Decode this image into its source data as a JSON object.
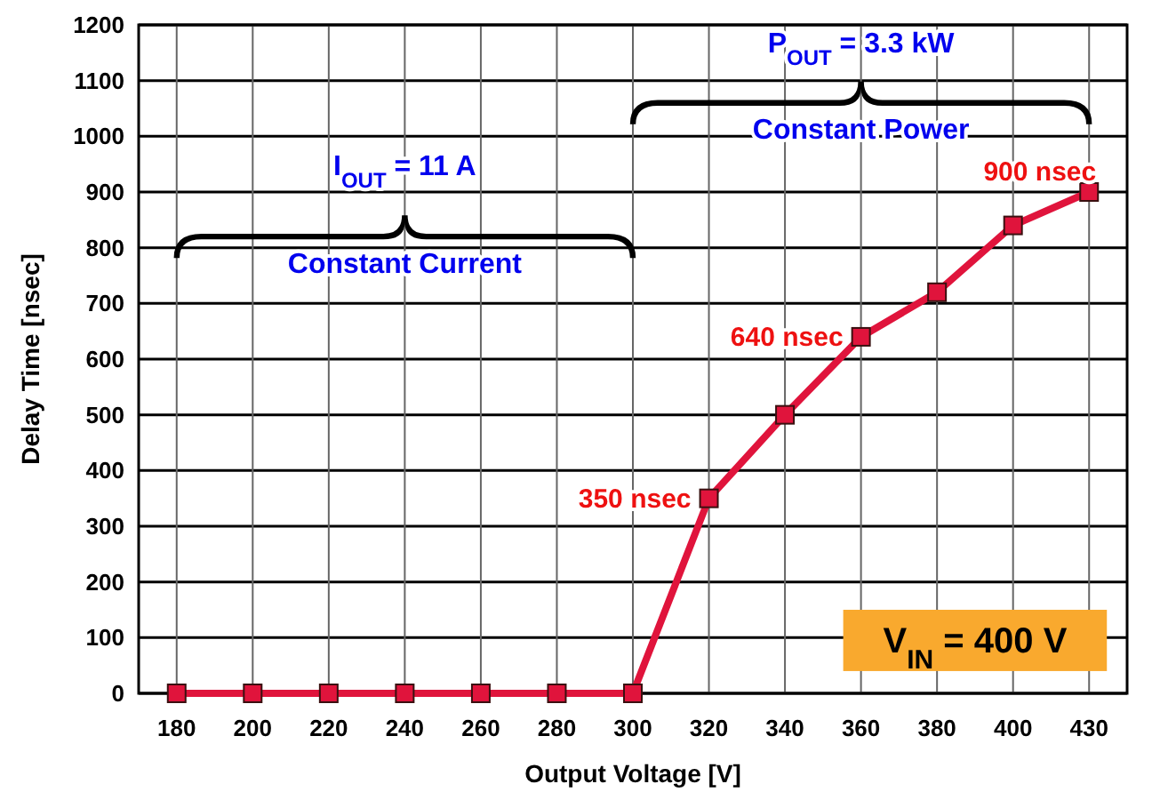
{
  "chart_data": {
    "type": "line",
    "xlabel": "Output Voltage [V]",
    "ylabel": "Delay Time [nsec]",
    "categories": [
      "180",
      "200",
      "220",
      "240",
      "260",
      "280",
      "300",
      "320",
      "340",
      "360",
      "380",
      "400",
      "430"
    ],
    "series": [
      {
        "color": "#e0143c",
        "values": [
          0,
          0,
          0,
          0,
          0,
          0,
          0,
          350,
          500,
          640,
          720,
          840,
          900
        ]
      }
    ],
    "ylim": [
      0,
      1200
    ],
    "yticks": [
      0,
      100,
      200,
      300,
      400,
      500,
      600,
      700,
      800,
      900,
      1000,
      1100,
      1200
    ],
    "grid": true,
    "marker": "square",
    "line_style": "solid",
    "annotations": [
      "I$_{OUT}$ = 11 A",
      "Constant Current",
      "P$_{OUT}$ = 3.3 kW",
      "Constant Power",
      "V$_{IN}$ = 400 V",
      {
        "text": "350 nsec",
        "x": "320",
        "y": 350
      },
      {
        "text": "640 nsec",
        "x": "360",
        "y": 640
      },
      {
        "text": "900 nsec",
        "x": "430",
        "y": 900
      }
    ]
  }
}
